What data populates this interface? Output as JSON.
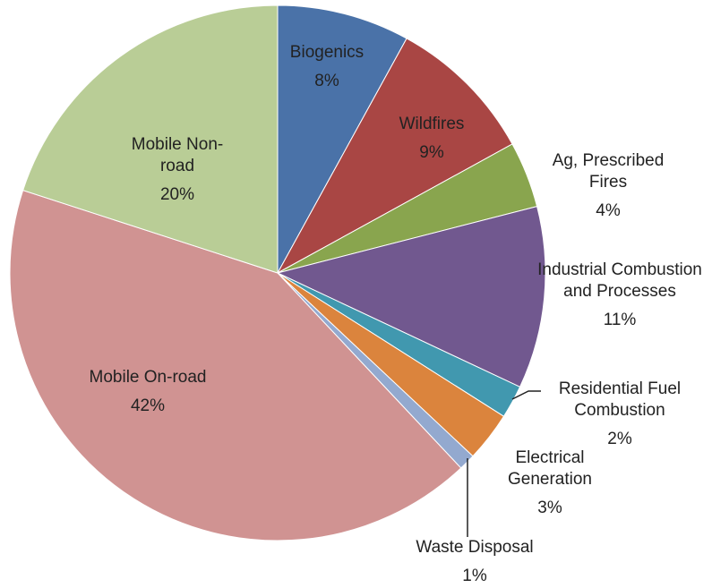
{
  "chart_data": {
    "type": "pie",
    "categories": [
      "Biogenics",
      "Wildfires",
      "Ag, Prescribed Fires",
      "Industrial Combustion and Processes",
      "Residential Fuel Combustion",
      "Electrical Generation",
      "Waste Disposal",
      "Mobile On-road",
      "Mobile Non-road"
    ],
    "values": [
      8,
      9,
      4,
      11,
      2,
      3,
      1,
      42,
      20
    ],
    "value_labels": [
      "8%",
      "9%",
      "4%",
      "11%",
      "2%",
      "3%",
      "1%",
      "42%",
      "20%"
    ],
    "colors": [
      "#4a72a8",
      "#a94644",
      "#89a54e",
      "#71588f",
      "#4198af",
      "#db843d",
      "#93a9cf",
      "#d09392",
      "#b9cd96"
    ]
  }
}
